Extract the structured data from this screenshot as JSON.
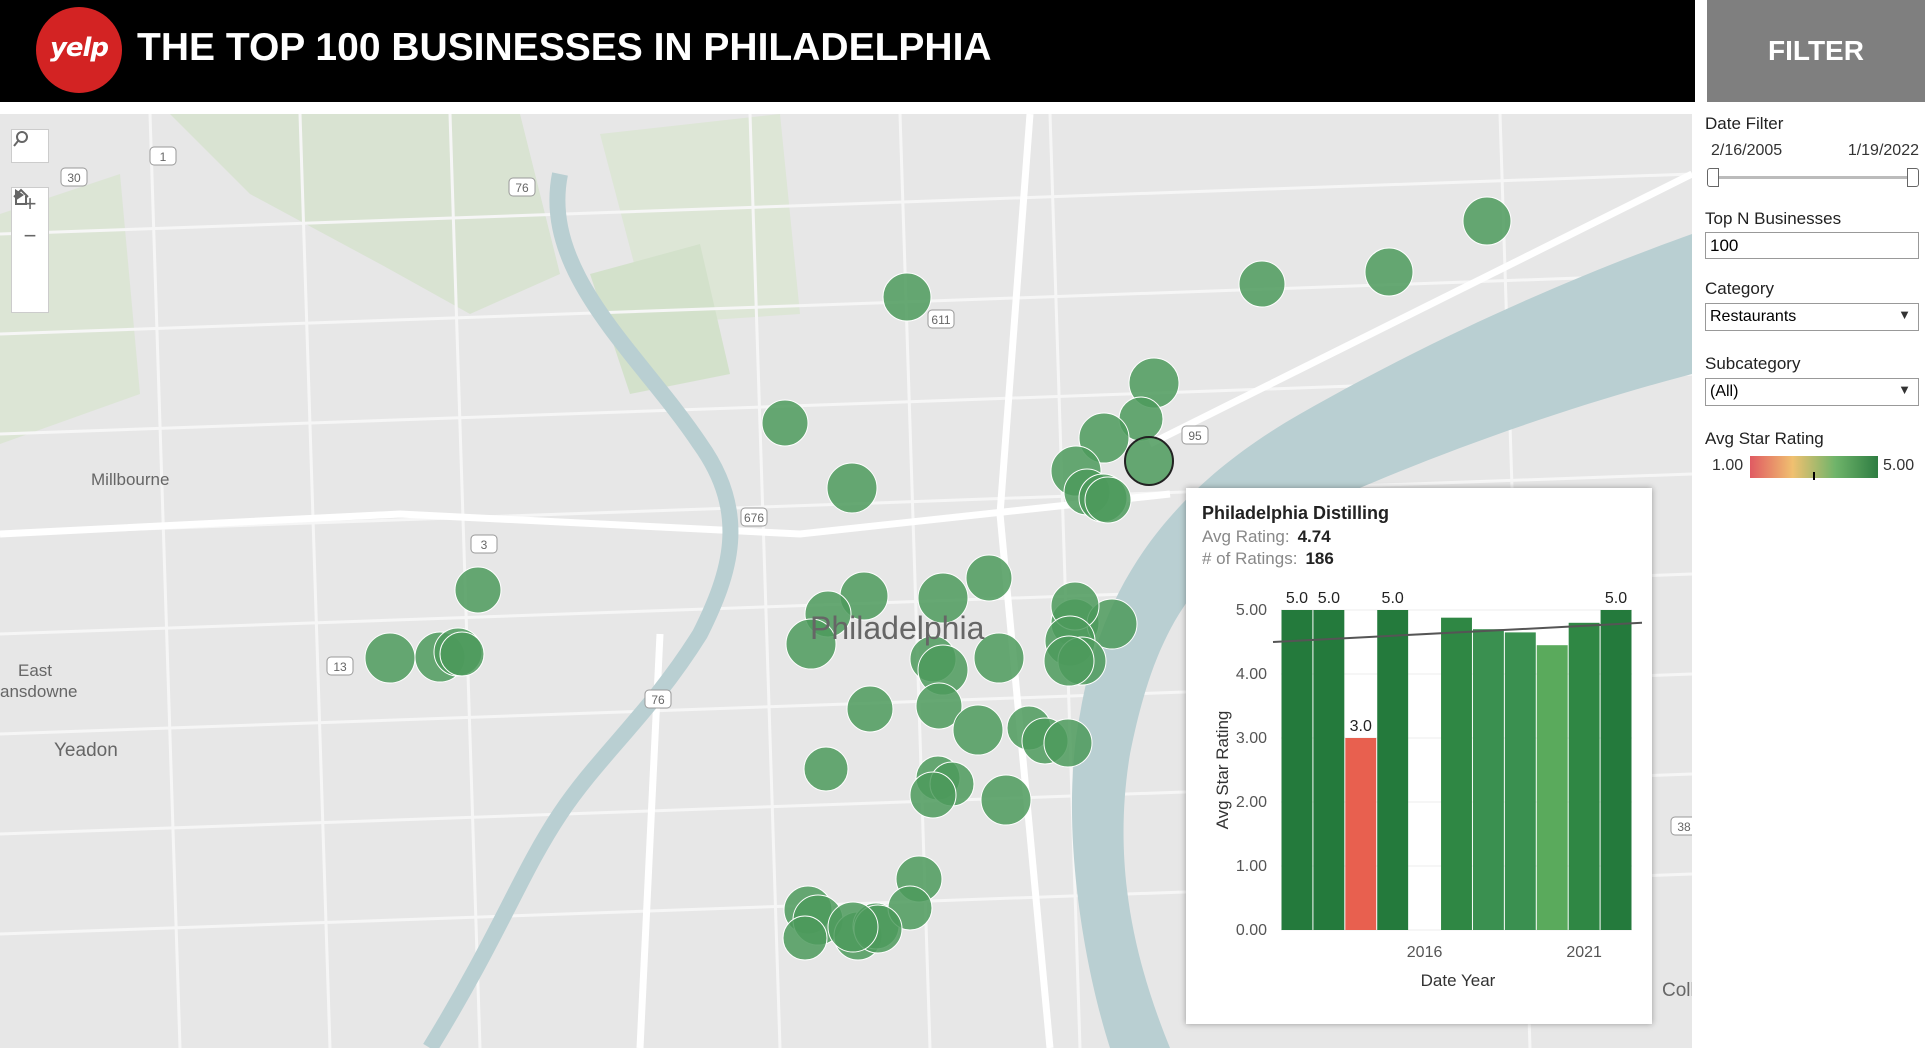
{
  "header": {
    "logo_text": "yelp",
    "title": "THE TOP 100 BUSINESSES IN PHILADELPHIA",
    "filter_title": "FILTER"
  },
  "map": {
    "labels": {
      "city": "Philadelphia",
      "millbourne": "Millbourne",
      "east_lansdowne_1": "East",
      "east_lansdowne_2": "ansdowne",
      "yeadon": "Yeadon",
      "coll": "Coll"
    },
    "shields": [
      "30",
      "1",
      "76",
      "611",
      "95",
      "676",
      "3",
      "13",
      "76",
      "38"
    ],
    "controls": {
      "search": "search-icon",
      "zoom_in": "+",
      "zoom_out": "−",
      "home": "home-icon",
      "play": "play-icon"
    },
    "marker_color": "#4c9a5c"
  },
  "filters": {
    "date": {
      "label": "Date Filter",
      "start": "2/16/2005",
      "end": "1/19/2022"
    },
    "top_n": {
      "label": "Top N Businesses",
      "value": "100"
    },
    "category": {
      "label": "Category",
      "value": "Restaurants"
    },
    "subcategory": {
      "label": "Subcategory",
      "value": "(All)"
    },
    "rating": {
      "label": "Avg Star Rating",
      "min": "1.00",
      "max": "5.00"
    }
  },
  "tooltip": {
    "name": "Philadelphia Distilling",
    "avg_rating_label": "Avg Rating:",
    "avg_rating": "4.74",
    "num_ratings_label": "# of Ratings:",
    "num_ratings": "186"
  },
  "chart_data": {
    "type": "bar",
    "xlabel": "Date Year",
    "ylabel": "Avg Star Rating",
    "ylim": [
      0,
      5
    ],
    "yticks": [
      "0.00",
      "1.00",
      "2.00",
      "3.00",
      "4.00",
      "5.00"
    ],
    "xticks": [
      "2016",
      "2021"
    ],
    "x": [
      2012,
      2013,
      2014,
      2015,
      2017,
      2018,
      2019,
      2020,
      2021,
      2022
    ],
    "values": [
      5.0,
      5.0,
      3.0,
      5.0,
      4.88,
      4.7,
      4.65,
      4.45,
      4.8,
      5.0
    ],
    "data_labels": [
      "5.0",
      "5.0",
      "3.0",
      "5.0",
      "",
      "",
      "",
      "",
      "",
      "5.0"
    ],
    "trend": [
      4.5,
      4.8
    ]
  }
}
